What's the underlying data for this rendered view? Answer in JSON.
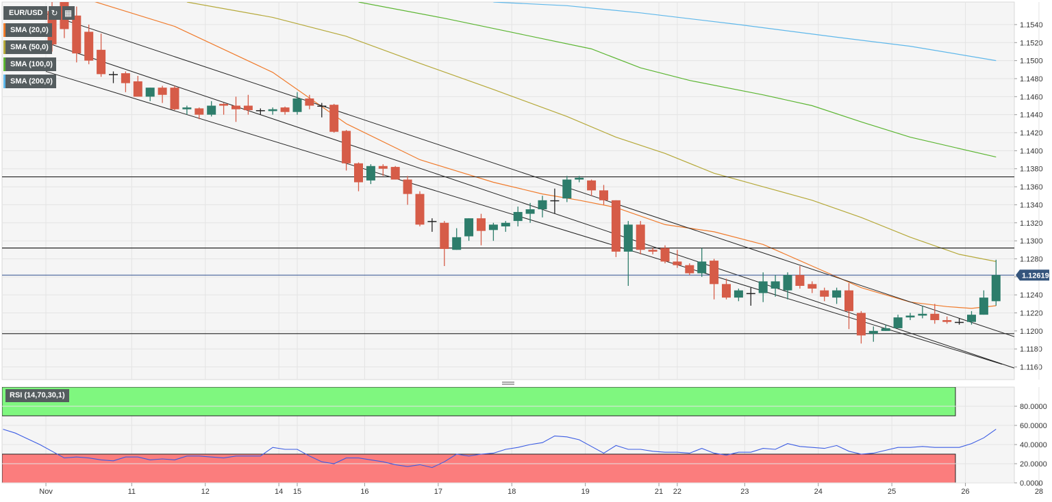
{
  "header": {
    "symbol": "EUR/USD",
    "refresh_icon": "refresh-icon",
    "calendar_icon": "calendar-icon"
  },
  "legend": [
    {
      "label": "SMA (20,0)",
      "color": "#f07a2a"
    },
    {
      "label": "SMA (50,0)",
      "color": "#b5a838"
    },
    {
      "label": "SMA (100,0)",
      "color": "#5bb531"
    },
    {
      "label": "SMA (200,0)",
      "color": "#5eb7ea"
    }
  ],
  "price_label": "1.12619",
  "rsi": {
    "label": "RSI (14,70,30,1)",
    "upper": 70,
    "lower": 30,
    "line_color": "#3a5be3",
    "over_color": "#7ff77f",
    "under_color": "#fb7d7d",
    "ticks": [
      "80.0000",
      "60.0000",
      "40.0000",
      "20.0000",
      "0.0000"
    ],
    "values": [
      56,
      52,
      46,
      40,
      33,
      26,
      27,
      26,
      24,
      23,
      27,
      27,
      24,
      25,
      24,
      28,
      28,
      27,
      26,
      28,
      28,
      28,
      37,
      35,
      35,
      28,
      22,
      20,
      26,
      26,
      24,
      22,
      19,
      17,
      19,
      16,
      22,
      30,
      28,
      30,
      31,
      35,
      37,
      40,
      42,
      49,
      48,
      45,
      38,
      31,
      39,
      35,
      35,
      33,
      32,
      32,
      31,
      36,
      31,
      29,
      32,
      32,
      36,
      35,
      41,
      38,
      37,
      36,
      39,
      33,
      30,
      31,
      34,
      37,
      37,
      38,
      37,
      37,
      37,
      41,
      47,
      56
    ]
  },
  "chart_data": {
    "type": "candlestick",
    "symbol": "EUR/USD",
    "y_ticks": [
      "1.1540",
      "1.1520",
      "1.1500",
      "1.1480",
      "1.1460",
      "1.1440",
      "1.1420",
      "1.1400",
      "1.1380",
      "1.1360",
      "1.1340",
      "1.1320",
      "1.1300",
      "1.1280",
      "1.1260",
      "1.1240",
      "1.1220",
      "1.1200",
      "1.1180",
      "1.1160"
    ],
    "ylim": [
      1.1146,
      1.1565
    ],
    "x_labels": [
      {
        "label": "Nov",
        "bar": -0.5
      },
      {
        "label": "11",
        "bar": 6.5
      },
      {
        "label": "12",
        "bar": 12.5
      },
      {
        "label": "14",
        "bar": 18.5
      },
      {
        "label": "15",
        "bar": 20
      },
      {
        "label": "16",
        "bar": 25.5
      },
      {
        "label": "17",
        "bar": 31.5
      },
      {
        "label": "18",
        "bar": 37.5
      },
      {
        "label": "19",
        "bar": 43.5
      },
      {
        "label": "21",
        "bar": 49.5
      },
      {
        "label": "22",
        "bar": 51
      },
      {
        "label": "23",
        "bar": 56.5
      },
      {
        "label": "24",
        "bar": 62.5
      },
      {
        "label": "25",
        "bar": 68.5
      },
      {
        "label": "26",
        "bar": 74.5
      },
      {
        "label": "28",
        "bar": 80.5
      }
    ],
    "candles": [
      [
        1.1555,
        1.157,
        1.151,
        1.1518
      ],
      [
        1.1585,
        1.1595,
        1.1525,
        1.1535
      ],
      [
        1.155,
        1.156,
        1.1498,
        1.1508
      ],
      [
        1.1532,
        1.154,
        1.1496,
        1.15
      ],
      [
        1.1512,
        1.153,
        1.1482,
        1.1485
      ],
      [
        1.1485,
        1.1488,
        1.1475,
        1.1485
      ],
      [
        1.1486,
        1.1488,
        1.1465,
        1.1475
      ],
      [
        1.1477,
        1.1483,
        1.1462,
        1.146
      ],
      [
        1.146,
        1.147,
        1.1455,
        1.147
      ],
      [
        1.147,
        1.1472,
        1.1453,
        1.1462
      ],
      [
        1.147,
        1.1472,
        1.1445,
        1.1446
      ],
      [
        1.1446,
        1.145,
        1.144,
        1.1448
      ],
      [
        1.1447,
        1.1448,
        1.1435,
        1.144
      ],
      [
        1.144,
        1.1455,
        1.1438,
        1.145
      ],
      [
        1.1452,
        1.1453,
        1.144,
        1.145
      ],
      [
        1.145,
        1.146,
        1.1432,
        1.1446
      ],
      [
        1.145,
        1.1462,
        1.144,
        1.1445
      ],
      [
        1.1445,
        1.1447,
        1.144,
        1.1445
      ],
      [
        1.1444,
        1.1448,
        1.144,
        1.1446
      ],
      [
        1.1448,
        1.1449,
        1.144,
        1.1443
      ],
      [
        1.1443,
        1.1465,
        1.144,
        1.1458
      ],
      [
        1.1458,
        1.1462,
        1.1446,
        1.145
      ],
      [
        1.145,
        1.1453,
        1.1437,
        1.145
      ],
      [
        1.1451,
        1.1452,
        1.142,
        1.1421
      ],
      [
        1.1422,
        1.1423,
        1.1378,
        1.1386
      ],
      [
        1.1386,
        1.1387,
        1.1355,
        1.1365
      ],
      [
        1.1367,
        1.1385,
        1.1363,
        1.1383
      ],
      [
        1.1383,
        1.1385,
        1.1372,
        1.138
      ],
      [
        1.1382,
        1.1383,
        1.1368,
        1.1368
      ],
      [
        1.1368,
        1.1372,
        1.134,
        1.1352
      ],
      [
        1.1352,
        1.1355,
        1.1316,
        1.1318
      ],
      [
        1.1322,
        1.1325,
        1.131,
        1.1322
      ],
      [
        1.132,
        1.1322,
        1.1272,
        1.1291
      ],
      [
        1.129,
        1.1314,
        1.129,
        1.1304
      ],
      [
        1.1305,
        1.1325,
        1.13,
        1.1325
      ],
      [
        1.1325,
        1.133,
        1.1295,
        1.1311
      ],
      [
        1.1312,
        1.132,
        1.13,
        1.1318
      ],
      [
        1.1316,
        1.1322,
        1.131,
        1.132
      ],
      [
        1.1322,
        1.1338,
        1.1316,
        1.1332
      ],
      [
        1.133,
        1.1342,
        1.132,
        1.1335
      ],
      [
        1.1335,
        1.135,
        1.1326,
        1.1345
      ],
      [
        1.1345,
        1.1358,
        1.133,
        1.1345
      ],
      [
        1.1347,
        1.1372,
        1.1343,
        1.1368
      ],
      [
        1.1368,
        1.1372,
        1.1365,
        1.137
      ],
      [
        1.1367,
        1.1368,
        1.135,
        1.1356
      ],
      [
        1.1356,
        1.1362,
        1.134,
        1.1345
      ],
      [
        1.1345,
        1.1345,
        1.1282,
        1.1288
      ],
      [
        1.1288,
        1.1322,
        1.125,
        1.1318
      ],
      [
        1.1318,
        1.1322,
        1.1285,
        1.129
      ],
      [
        1.129,
        1.1292,
        1.1285,
        1.1288
      ],
      [
        1.1292,
        1.1295,
        1.1275,
        1.1277
      ],
      [
        1.1277,
        1.129,
        1.127,
        1.1273
      ],
      [
        1.1273,
        1.1275,
        1.1262,
        1.1264
      ],
      [
        1.1264,
        1.1292,
        1.126,
        1.1277
      ],
      [
        1.1278,
        1.128,
        1.1235,
        1.1252
      ],
      [
        1.1252,
        1.1258,
        1.1235,
        1.1237
      ],
      [
        1.1237,
        1.1247,
        1.1233,
        1.1245
      ],
      [
        1.1242,
        1.1248,
        1.1228,
        1.1242
      ],
      [
        1.1242,
        1.1265,
        1.1232,
        1.1255
      ],
      [
        1.1247,
        1.1262,
        1.1238,
        1.1255
      ],
      [
        1.1245,
        1.1265,
        1.1235,
        1.1262
      ],
      [
        1.1262,
        1.1272,
        1.1247,
        1.125
      ],
      [
        1.1252,
        1.1255,
        1.1242,
        1.1247
      ],
      [
        1.1245,
        1.1248,
        1.1233,
        1.1238
      ],
      [
        1.1237,
        1.1248,
        1.123,
        1.1245
      ],
      [
        1.1245,
        1.1253,
        1.1202,
        1.1222
      ],
      [
        1.122,
        1.1222,
        1.1186,
        1.1195
      ],
      [
        1.1197,
        1.1205,
        1.1188,
        1.12
      ],
      [
        1.12,
        1.1207,
        1.12,
        1.1203
      ],
      [
        1.1203,
        1.1218,
        1.1203,
        1.1215
      ],
      [
        1.1215,
        1.122,
        1.1212,
        1.1217
      ],
      [
        1.1217,
        1.1228,
        1.1214,
        1.1219
      ],
      [
        1.1219,
        1.123,
        1.1208,
        1.1212
      ],
      [
        1.1212,
        1.1216,
        1.1208,
        1.121
      ],
      [
        1.121,
        1.1214,
        1.1207,
        1.121
      ],
      [
        1.121,
        1.1222,
        1.1207,
        1.1218
      ],
      [
        1.1218,
        1.1245,
        1.1218,
        1.1237
      ],
      [
        1.1233,
        1.1279,
        1.1228,
        1.1262
      ]
    ],
    "sma": [
      {
        "name": "SMA (20,0)",
        "color": "#f07a2a",
        "points": [
          [
            0,
            1.158
          ],
          [
            10,
            1.1538
          ],
          [
            18,
            1.1487
          ],
          [
            24,
            1.143
          ],
          [
            30,
            1.139
          ],
          [
            36,
            1.1365
          ],
          [
            40,
            1.1352
          ],
          [
            43,
            1.1345
          ],
          [
            46,
            1.1337
          ],
          [
            50,
            1.1318
          ],
          [
            54,
            1.131
          ],
          [
            58,
            1.1296
          ],
          [
            62,
            1.1272
          ],
          [
            66,
            1.1248
          ],
          [
            70,
            1.1232
          ],
          [
            73,
            1.1227
          ],
          [
            75,
            1.1225
          ],
          [
            77,
            1.1228
          ]
        ]
      },
      {
        "name": "SMA (50,0)",
        "color": "#b5a838",
        "points": [
          [
            11,
            1.1565
          ],
          [
            18,
            1.1548
          ],
          [
            24,
            1.1527
          ],
          [
            30,
            1.1497
          ],
          [
            36,
            1.1468
          ],
          [
            42,
            1.1438
          ],
          [
            46,
            1.1415
          ],
          [
            50,
            1.1397
          ],
          [
            54,
            1.1375
          ],
          [
            58,
            1.136
          ],
          [
            62,
            1.1345
          ],
          [
            66,
            1.1326
          ],
          [
            70,
            1.1304
          ],
          [
            74,
            1.1285
          ],
          [
            77,
            1.1277
          ]
        ]
      },
      {
        "name": "SMA (100,0)",
        "color": "#5bb531",
        "points": [
          [
            25,
            1.1565
          ],
          [
            32,
            1.1547
          ],
          [
            38,
            1.153
          ],
          [
            44,
            1.1513
          ],
          [
            48,
            1.1492
          ],
          [
            52,
            1.1478
          ],
          [
            58,
            1.1462
          ],
          [
            62,
            1.145
          ],
          [
            66,
            1.1432
          ],
          [
            70,
            1.1415
          ],
          [
            77,
            1.1393
          ]
        ]
      },
      {
        "name": "SMA (200,0)",
        "color": "#5eb7ea",
        "points": [
          [
            36,
            1.1565
          ],
          [
            42,
            1.1561
          ],
          [
            48,
            1.1553
          ],
          [
            56,
            1.154
          ],
          [
            64,
            1.1526
          ],
          [
            70,
            1.1516
          ],
          [
            77,
            1.15
          ]
        ]
      }
    ],
    "channel_lines": [
      [
        [
          -0.5,
          1.1552
        ],
        [
          81.5,
          1.118
        ]
      ],
      [
        [
          -0.5,
          1.152
        ],
        [
          81.5,
          1.1145
        ]
      ],
      [
        [
          -0.5,
          1.1488
        ],
        [
          77.5,
          1.1163
        ]
      ]
    ],
    "horizontal_lines": [
      1.1371,
      1.1292,
      1.1197
    ],
    "current_price": 1.12619,
    "grid": true
  }
}
